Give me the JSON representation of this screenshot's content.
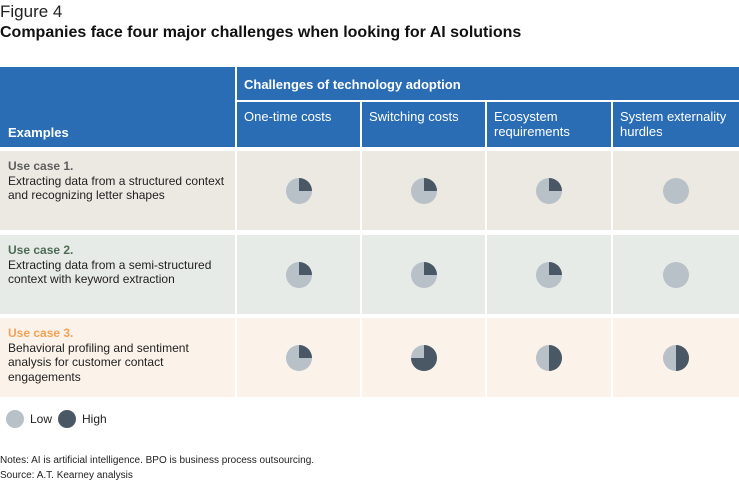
{
  "figure_label": "Figure 4",
  "title": "Companies face four major challenges when looking for AI solutions",
  "colors": {
    "header": "#2a6db5",
    "low": "#b8c0c8",
    "high": "#4a5866"
  },
  "chart_data": {
    "type": "table",
    "title": "Companies face four major challenges when looking for AI solutions",
    "row_header": "Examples",
    "column_group": "Challenges of technology adoption",
    "columns": [
      "One-time costs",
      "Switching costs",
      "Ecosystem requirements",
      "System externality hurdles"
    ],
    "rows": [
      {
        "label": "Use case 1.",
        "description": "Extracting data from a structured context and recognizing letter shapes",
        "label_color": "#5e5e5e",
        "background": "#ece9e3",
        "values": [
          0.25,
          0.25,
          0.25,
          0
        ]
      },
      {
        "label": "Use case 2.",
        "description": "Extracting data from a semi-structured context with keyword extraction",
        "label_color": "#4e6b55",
        "background": "#e7ebe7",
        "values": [
          0.25,
          0.25,
          0.25,
          0
        ]
      },
      {
        "label": "Use case 3.",
        "description": "Behavioral profiling and sentiment analysis for customer contact engagements",
        "label_color": "#f4a155",
        "background": "#fbf3ea",
        "values": [
          0.25,
          0.75,
          0.5,
          0.5
        ]
      }
    ],
    "value_scale": "0 = Low, 1 = High (Harvey ball fill)",
    "legend": [
      "Low",
      "High"
    ]
  },
  "notes": "Notes: AI is artificial intelligence. BPO is business process outsourcing.",
  "source": "Source: A.T. Kearney analysis"
}
